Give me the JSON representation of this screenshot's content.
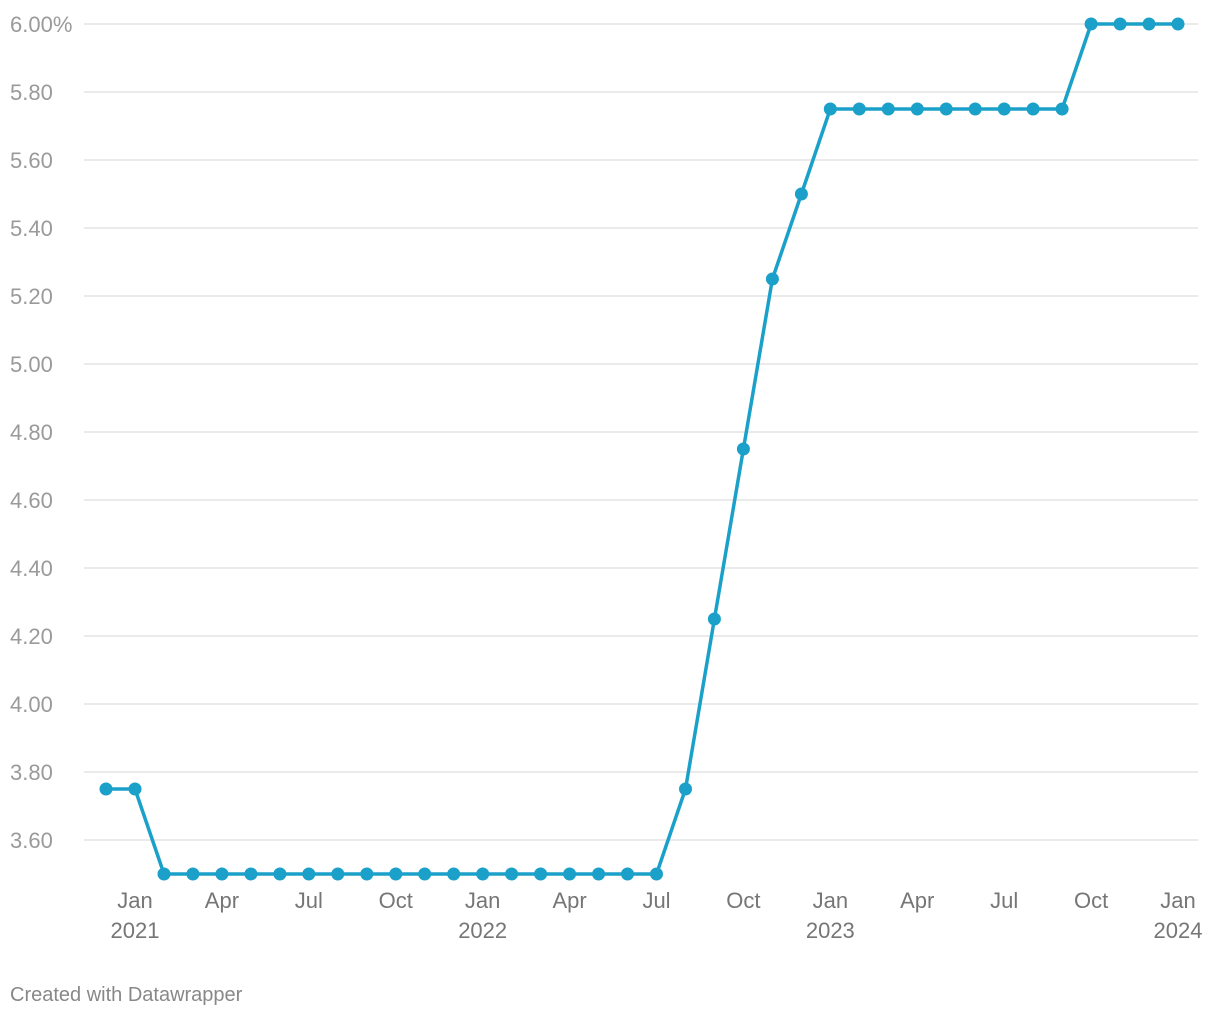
{
  "credit": "Created with Datawrapper",
  "colors": {
    "line": "#1ba1c9",
    "grid": "#e3e3e3",
    "tick_text": "#9a9a9a"
  },
  "chart_data": {
    "type": "line",
    "title": "",
    "xlabel": "",
    "ylabel": "",
    "ylim": [
      3.5,
      6.0
    ],
    "y_ticks": [
      {
        "value": 6.0,
        "label": "6.00%"
      },
      {
        "value": 5.8,
        "label": "5.80"
      },
      {
        "value": 5.6,
        "label": "5.60"
      },
      {
        "value": 5.4,
        "label": "5.40"
      },
      {
        "value": 5.2,
        "label": "5.20"
      },
      {
        "value": 5.0,
        "label": "5.00"
      },
      {
        "value": 4.8,
        "label": "4.80"
      },
      {
        "value": 4.6,
        "label": "4.60"
      },
      {
        "value": 4.4,
        "label": "4.40"
      },
      {
        "value": 4.2,
        "label": "4.20"
      },
      {
        "value": 4.0,
        "label": "4.00"
      },
      {
        "value": 3.8,
        "label": "3.80"
      },
      {
        "value": 3.6,
        "label": "3.60"
      }
    ],
    "x_ticks": [
      {
        "date": "2021-01",
        "label": "Jan",
        "year": "2021"
      },
      {
        "date": "2021-04",
        "label": "Apr",
        "year": ""
      },
      {
        "date": "2021-07",
        "label": "Jul",
        "year": ""
      },
      {
        "date": "2021-10",
        "label": "Oct",
        "year": ""
      },
      {
        "date": "2022-01",
        "label": "Jan",
        "year": "2022"
      },
      {
        "date": "2022-04",
        "label": "Apr",
        "year": ""
      },
      {
        "date": "2022-07",
        "label": "Jul",
        "year": ""
      },
      {
        "date": "2022-10",
        "label": "Oct",
        "year": ""
      },
      {
        "date": "2023-01",
        "label": "Jan",
        "year": "2023"
      },
      {
        "date": "2023-04",
        "label": "Apr",
        "year": ""
      },
      {
        "date": "2023-07",
        "label": "Jul",
        "year": ""
      },
      {
        "date": "2023-10",
        "label": "Oct",
        "year": ""
      },
      {
        "date": "2024-01",
        "label": "Jan",
        "year": "2024"
      }
    ],
    "grid": true,
    "series": [
      {
        "points": [
          {
            "x": "2020-12",
            "y": 3.75
          },
          {
            "x": "2021-01",
            "y": 3.75
          },
          {
            "x": "2021-02",
            "y": 3.5
          },
          {
            "x": "2021-03",
            "y": 3.5
          },
          {
            "x": "2021-04",
            "y": 3.5
          },
          {
            "x": "2021-05",
            "y": 3.5
          },
          {
            "x": "2021-06",
            "y": 3.5
          },
          {
            "x": "2021-07",
            "y": 3.5
          },
          {
            "x": "2021-08",
            "y": 3.5
          },
          {
            "x": "2021-09",
            "y": 3.5
          },
          {
            "x": "2021-10",
            "y": 3.5
          },
          {
            "x": "2021-11",
            "y": 3.5
          },
          {
            "x": "2021-12",
            "y": 3.5
          },
          {
            "x": "2022-01",
            "y": 3.5
          },
          {
            "x": "2022-02",
            "y": 3.5
          },
          {
            "x": "2022-03",
            "y": 3.5
          },
          {
            "x": "2022-04",
            "y": 3.5
          },
          {
            "x": "2022-05",
            "y": 3.5
          },
          {
            "x": "2022-06",
            "y": 3.5
          },
          {
            "x": "2022-07",
            "y": 3.5
          },
          {
            "x": "2022-08",
            "y": 3.75
          },
          {
            "x": "2022-09",
            "y": 4.25
          },
          {
            "x": "2022-10",
            "y": 4.75
          },
          {
            "x": "2022-11",
            "y": 5.25
          },
          {
            "x": "2022-12",
            "y": 5.5
          },
          {
            "x": "2023-01",
            "y": 5.75
          },
          {
            "x": "2023-02",
            "y": 5.75
          },
          {
            "x": "2023-03",
            "y": 5.75
          },
          {
            "x": "2023-04",
            "y": 5.75
          },
          {
            "x": "2023-05",
            "y": 5.75
          },
          {
            "x": "2023-06",
            "y": 5.75
          },
          {
            "x": "2023-07",
            "y": 5.75
          },
          {
            "x": "2023-08",
            "y": 5.75
          },
          {
            "x": "2023-09",
            "y": 5.75
          },
          {
            "x": "2023-10",
            "y": 6.0
          },
          {
            "x": "2023-11",
            "y": 6.0
          },
          {
            "x": "2023-12",
            "y": 6.0
          },
          {
            "x": "2024-01",
            "y": 6.0
          }
        ]
      }
    ]
  }
}
